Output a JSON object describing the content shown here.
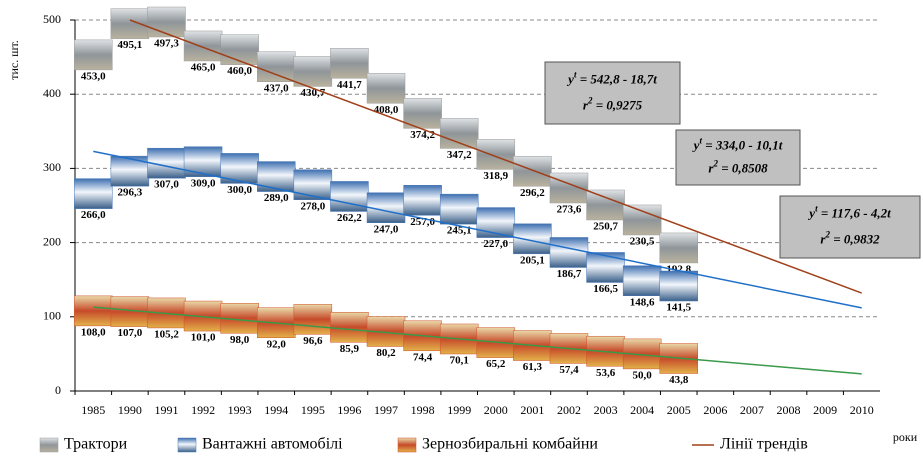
{
  "chart_data": {
    "type": "line",
    "y_label": "тис. шт.",
    "x_label": "роки",
    "categories": [
      "1985",
      "1990",
      "1991",
      "1992",
      "1993",
      "1994",
      "1995",
      "1996",
      "1997",
      "1998",
      "1999",
      "2000",
      "2001",
      "2002",
      "2003",
      "2004",
      "2005",
      "2006",
      "2007",
      "2008",
      "2009",
      "2010"
    ],
    "ylim": [
      0,
      500
    ],
    "yticks": [
      0,
      100,
      200,
      300,
      400,
      500
    ],
    "grid": true,
    "series": [
      {
        "name": "Трактори",
        "color": "#9a9a9a",
        "values": [
          453.0,
          495.1,
          497.3,
          465.0,
          460.0,
          437.0,
          430.7,
          441.7,
          408.0,
          374.2,
          347.2,
          318.9,
          296.2,
          273.6,
          250.7,
          230.5,
          192.8,
          null,
          null,
          null,
          null,
          null
        ],
        "value_labels": [
          "453,0",
          "495,1",
          "497,3",
          "465,0",
          "460,0",
          "437,0",
          "430,7",
          "441,7",
          "408,0",
          "374,2",
          "347,2",
          "318,9",
          "296,2",
          "273,6",
          "250,7",
          "230,5",
          "192,8",
          null,
          null,
          null,
          null,
          null
        ]
      },
      {
        "name": "Вантажні автомобілі",
        "color": "#4a78b8",
        "values": [
          266.0,
          296.3,
          307.0,
          309.0,
          300.0,
          289.0,
          278.0,
          262.2,
          247.0,
          257.0,
          245.1,
          227.0,
          205.1,
          186.7,
          166.5,
          148.6,
          141.5,
          null,
          null,
          null,
          null,
          null
        ],
        "value_labels": [
          "266,0",
          "296,3",
          "307,0",
          "309,0",
          "300,0",
          "289,0",
          "278,0",
          "262,2",
          "247,0",
          "257,0",
          "245,1",
          "227,0",
          "205,1",
          "186,7",
          "166,5",
          "148,6",
          "141,5",
          null,
          null,
          null,
          null,
          null
        ]
      },
      {
        "name": "Зернозбиральні комбайни",
        "color": "#d0502a",
        "values": [
          108.0,
          107.0,
          105.2,
          101.0,
          98.0,
          92.0,
          96.6,
          85.9,
          80.2,
          74.4,
          70.1,
          65.2,
          61.3,
          57.4,
          53.6,
          50.0,
          43.8,
          null,
          null,
          null,
          null,
          null
        ],
        "value_labels": [
          "108,0",
          "107,0",
          "105,2",
          "101,0",
          "98,0",
          "92,0",
          "96,6",
          "85,9",
          "80,2",
          "74,4",
          "70,1",
          "65,2",
          "61,3",
          "57,4",
          "53,6",
          "50,0",
          "43,8",
          null,
          null,
          null,
          null,
          null
        ]
      }
    ],
    "trend_legend": "Лінії трендів",
    "trend_lines": [
      {
        "color": "#a0401a",
        "x": [
          "1990",
          "2010"
        ],
        "values": [
          500,
          132
        ],
        "lhs": "y",
        "lhs_sup": "t",
        "rhs": " = 542,8 - 18,7t",
        "r_lhs": "r",
        "r_sup": "2",
        "r_rhs": " = 0,9275"
      },
      {
        "color": "#1f6fc8",
        "x": [
          "1985",
          "2010"
        ],
        "values": [
          323,
          112
        ],
        "lhs": "y",
        "lhs_sup": "t",
        "rhs": " = 334,0 - 10,1t",
        "r_lhs": "r",
        "r_sup": "2",
        "r_rhs": " = 0,8508"
      },
      {
        "color": "#3a9a4a",
        "x": [
          "1985",
          "2010"
        ],
        "values": [
          113,
          23
        ],
        "lhs": "y",
        "lhs_sup": "t",
        "rhs": " = 117,6 - 4,2t",
        "r_lhs": "r",
        "r_sup": "2",
        "r_rhs": " = 0,9832"
      }
    ]
  }
}
